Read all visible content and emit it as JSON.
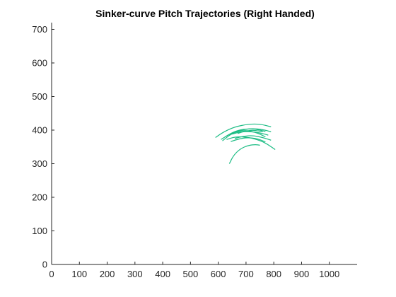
{
  "chart_data": {
    "type": "line",
    "title": "Sinker-curve Pitch Trajectories (Right Handed)",
    "xlabel": "",
    "ylabel": "",
    "xlim": [
      0,
      1100
    ],
    "ylim": [
      0,
      720
    ],
    "x_ticks": [
      0,
      100,
      200,
      300,
      400,
      500,
      600,
      700,
      800,
      900,
      1000
    ],
    "y_ticks": [
      0,
      100,
      200,
      300,
      400,
      500,
      600,
      700
    ],
    "grid": false,
    "legend": "none",
    "series_color": "#1abc83",
    "series": [
      {
        "points": [
          [
            590,
            378
          ],
          [
            620,
            395
          ],
          [
            660,
            410
          ],
          [
            710,
            418
          ],
          [
            750,
            418
          ],
          [
            790,
            410
          ]
        ]
      },
      {
        "points": [
          [
            610,
            372
          ],
          [
            640,
            388
          ],
          [
            680,
            400
          ],
          [
            720,
            405
          ],
          [
            760,
            402
          ],
          [
            790,
            395
          ]
        ]
      },
      {
        "points": [
          [
            615,
            368
          ],
          [
            640,
            385
          ],
          [
            665,
            395
          ],
          [
            700,
            400
          ],
          [
            740,
            392
          ],
          [
            770,
            380
          ]
        ]
      },
      {
        "points": [
          [
            640,
            300
          ],
          [
            655,
            325
          ],
          [
            680,
            345
          ],
          [
            710,
            355
          ],
          [
            735,
            357
          ],
          [
            750,
            355
          ]
        ]
      },
      {
        "points": [
          [
            630,
            372
          ],
          [
            660,
            380
          ],
          [
            700,
            380
          ],
          [
            740,
            372
          ],
          [
            770,
            362
          ],
          [
            805,
            342
          ]
        ]
      },
      {
        "points": [
          [
            650,
            388
          ],
          [
            680,
            395
          ],
          [
            715,
            396
          ],
          [
            750,
            392
          ],
          [
            780,
            385
          ]
        ]
      },
      {
        "points": [
          [
            660,
            375
          ],
          [
            690,
            382
          ],
          [
            725,
            384
          ],
          [
            760,
            378
          ],
          [
            790,
            370
          ]
        ]
      },
      {
        "points": [
          [
            625,
            380
          ],
          [
            655,
            395
          ],
          [
            690,
            403
          ],
          [
            730,
            404
          ],
          [
            770,
            396
          ]
        ]
      },
      {
        "points": [
          [
            670,
            390
          ],
          [
            700,
            398
          ],
          [
            730,
            400
          ],
          [
            760,
            395
          ]
        ]
      },
      {
        "points": [
          [
            645,
            366
          ],
          [
            675,
            374
          ],
          [
            705,
            378
          ],
          [
            740,
            375
          ],
          [
            770,
            365
          ]
        ]
      }
    ]
  }
}
